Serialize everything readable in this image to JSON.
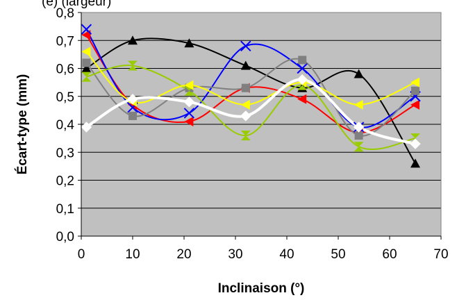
{
  "chart_data": {
    "type": "line",
    "title": "(e) (largeur)",
    "xlabel": "Inclinaison (°)",
    "ylabel": "Écart-type (mm)",
    "xlim": [
      0,
      70
    ],
    "ylim": [
      0.0,
      0.8
    ],
    "x_ticks": [
      0,
      10,
      20,
      30,
      40,
      50,
      60,
      70
    ],
    "y_ticks": [
      0.0,
      0.1,
      0.2,
      0.3,
      0.4,
      0.5,
      0.6,
      0.7,
      0.8
    ],
    "x_tick_labels": [
      "0",
      "10",
      "20",
      "30",
      "40",
      "50",
      "60",
      "70"
    ],
    "y_tick_labels": [
      "0,0",
      "0,1",
      "0,2",
      "0,3",
      "0,4",
      "0,5",
      "0,6",
      "0,7",
      "0,8"
    ],
    "grid": "horizontal",
    "plot_background": "#c0c0c0",
    "x": [
      1,
      10,
      21,
      32,
      43,
      54,
      65
    ],
    "series": [
      {
        "color": "#000000",
        "marker": "triangle",
        "values": [
          0.6,
          0.7,
          0.69,
          0.61,
          0.53,
          0.58,
          0.26
        ]
      },
      {
        "color": "#ff0000",
        "marker": "triangle-left",
        "values": [
          0.72,
          0.47,
          0.41,
          0.53,
          0.49,
          0.37,
          0.47
        ]
      },
      {
        "color": "#0000ff",
        "marker": "bowtie",
        "values": [
          0.74,
          0.46,
          0.44,
          0.68,
          0.6,
          0.39,
          0.5
        ]
      },
      {
        "color": "#808080",
        "marker": "square",
        "values": [
          0.62,
          0.43,
          0.53,
          0.53,
          0.63,
          0.36,
          0.52
        ]
      },
      {
        "color": "#99cc00",
        "marker": "hourglass",
        "values": [
          0.57,
          0.61,
          0.52,
          0.36,
          0.54,
          0.32,
          0.35
        ]
      },
      {
        "color": "#ffff00",
        "marker": "triangle-left",
        "values": [
          0.66,
          0.48,
          0.54,
          0.47,
          0.55,
          0.47,
          0.55
        ]
      },
      {
        "color": "#ffffff",
        "marker": "diamond",
        "values": [
          0.39,
          0.49,
          0.48,
          0.43,
          0.56,
          0.39,
          0.33
        ]
      }
    ]
  }
}
